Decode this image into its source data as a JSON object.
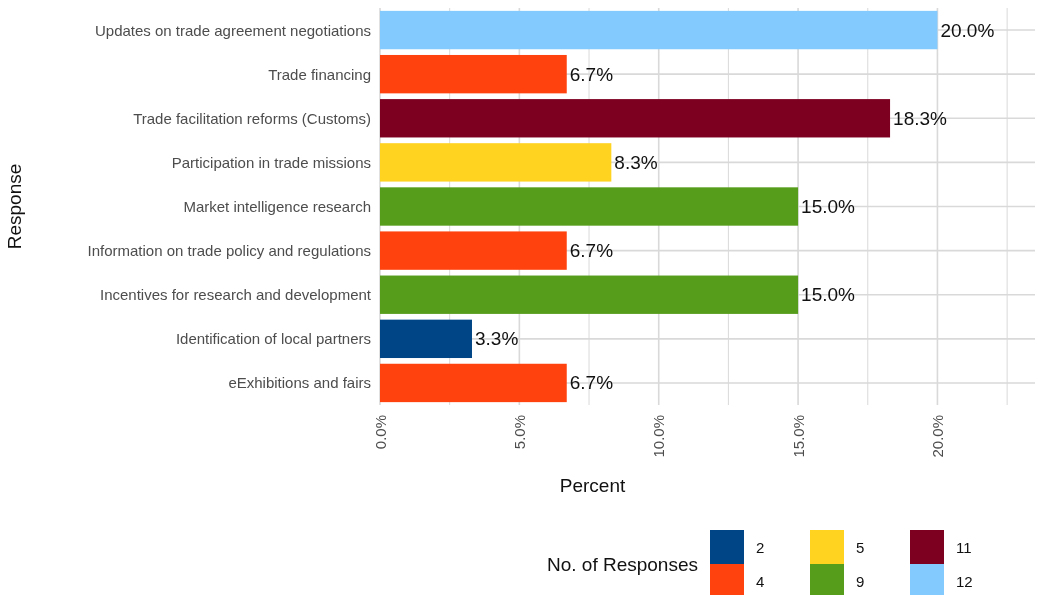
{
  "chart_data": {
    "type": "bar",
    "orientation": "horizontal",
    "xlabel": "Percent",
    "ylabel": "Response",
    "legend_title": "No. of Responses",
    "legend": "bottom",
    "grid": true,
    "categories": [
      "Updates on trade agreement negotiations",
      "Trade financing",
      "Trade facilitation reforms (Customs)",
      "Participation in trade missions",
      "Market intelligence research",
      "Information on trade policy and regulations",
      "Incentives for research and development",
      "Identification of local partners",
      "eExhibitions and fairs"
    ],
    "xlim": [
      0,
      23.5
    ],
    "xticks": [
      {
        "value": 0,
        "label": "0.0%"
      },
      {
        "value": 2.5,
        "label": null
      },
      {
        "value": 5,
        "label": "5.0%"
      },
      {
        "value": 7.5,
        "label": null
      },
      {
        "value": 10,
        "label": "10.0%"
      },
      {
        "value": 12.5,
        "label": null
      },
      {
        "value": 15,
        "label": "15.0%"
      },
      {
        "value": 17.5,
        "label": null
      },
      {
        "value": 20,
        "label": "20.0%"
      },
      {
        "value": 22.5,
        "label": null
      }
    ],
    "series": [
      {
        "name": "2",
        "color": "#004586",
        "values": [
          null,
          null,
          null,
          null,
          null,
          null,
          null,
          3.3,
          null
        ],
        "value_labels": [
          null,
          null,
          null,
          null,
          null,
          null,
          null,
          "3.3%",
          null
        ]
      },
      {
        "name": "4",
        "color": "#ff420e",
        "values": [
          null,
          6.7,
          null,
          null,
          null,
          6.7,
          null,
          null,
          6.7
        ],
        "value_labels": [
          null,
          "6.7%",
          null,
          null,
          null,
          "6.7%",
          null,
          null,
          "6.7%"
        ]
      },
      {
        "name": "5",
        "color": "#ffd320",
        "values": [
          null,
          null,
          null,
          8.3,
          null,
          null,
          null,
          null,
          null
        ],
        "value_labels": [
          null,
          null,
          null,
          "8.3%",
          null,
          null,
          null,
          null,
          null
        ]
      },
      {
        "name": "9",
        "color": "#579d1c",
        "values": [
          null,
          null,
          null,
          null,
          15.0,
          null,
          15.0,
          null,
          null
        ],
        "value_labels": [
          null,
          null,
          null,
          null,
          "15.0%",
          null,
          "15.0%",
          null,
          null
        ]
      },
      {
        "name": "11",
        "color": "#7e0021",
        "values": [
          null,
          null,
          18.3,
          null,
          null,
          null,
          null,
          null,
          null
        ],
        "value_labels": [
          null,
          null,
          "18.3%",
          null,
          null,
          null,
          null,
          null,
          null
        ]
      },
      {
        "name": "12",
        "color": "#83caff",
        "values": [
          20.0,
          null,
          null,
          null,
          null,
          null,
          null,
          null,
          null
        ],
        "value_labels": [
          "20.0%",
          null,
          null,
          null,
          null,
          null,
          null,
          null,
          null
        ]
      }
    ]
  }
}
